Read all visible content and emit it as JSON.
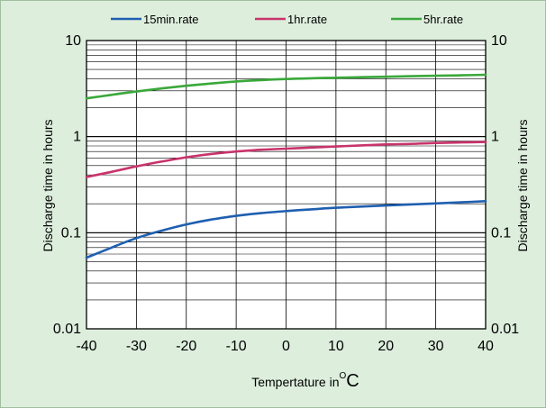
{
  "chart_data": {
    "type": "line",
    "title": "",
    "xlabel": "Tempertature in",
    "xlabel_unit_sup": "O",
    "xlabel_unit": "C",
    "ylabel": "Discharge time in hours",
    "y2label": "Discharge time in hours",
    "y_scale": "log",
    "xlim": [
      -40,
      40
    ],
    "ylim": [
      0.01,
      10
    ],
    "x_ticks": [
      -40,
      -30,
      -20,
      -10,
      0,
      10,
      20,
      30,
      40
    ],
    "x_tick_labels": [
      "-40",
      "-30",
      "-20",
      "-10",
      "0",
      "10",
      "20",
      "30",
      "40"
    ],
    "y_ticks": [
      0.01,
      0.1,
      1,
      10
    ],
    "y_tick_labels": [
      "0.01",
      "0.1",
      "1",
      "10"
    ],
    "grid": true,
    "legend_position": "top",
    "series": [
      {
        "name": "15min.rate",
        "color": "#1f5fb0",
        "x": [
          -40,
          -35,
          -30,
          -25,
          -20,
          -15,
          -10,
          -5,
          0,
          5,
          10,
          15,
          20,
          25,
          30,
          35,
          40
        ],
        "y": [
          0.055,
          0.07,
          0.088,
          0.105,
          0.122,
          0.137,
          0.15,
          0.16,
          0.168,
          0.175,
          0.182,
          0.187,
          0.192,
          0.197,
          0.202,
          0.207,
          0.213
        ]
      },
      {
        "name": "1hr.rate",
        "color": "#c8336b",
        "x": [
          -40,
          -35,
          -30,
          -25,
          -20,
          -15,
          -10,
          -5,
          0,
          5,
          10,
          15,
          20,
          25,
          30,
          35,
          40
        ],
        "y": [
          0.38,
          0.43,
          0.49,
          0.55,
          0.61,
          0.66,
          0.7,
          0.73,
          0.75,
          0.77,
          0.79,
          0.81,
          0.83,
          0.84,
          0.86,
          0.87,
          0.88
        ]
      },
      {
        "name": "5hr.rate",
        "color": "#3aa83a",
        "x": [
          -40,
          -35,
          -30,
          -25,
          -20,
          -15,
          -10,
          -5,
          0,
          5,
          10,
          15,
          20,
          25,
          30,
          35,
          40
        ],
        "y": [
          2.5,
          2.72,
          2.95,
          3.17,
          3.38,
          3.57,
          3.75,
          3.88,
          3.98,
          4.05,
          4.1,
          4.15,
          4.2,
          4.25,
          4.3,
          4.35,
          4.4
        ]
      }
    ]
  }
}
